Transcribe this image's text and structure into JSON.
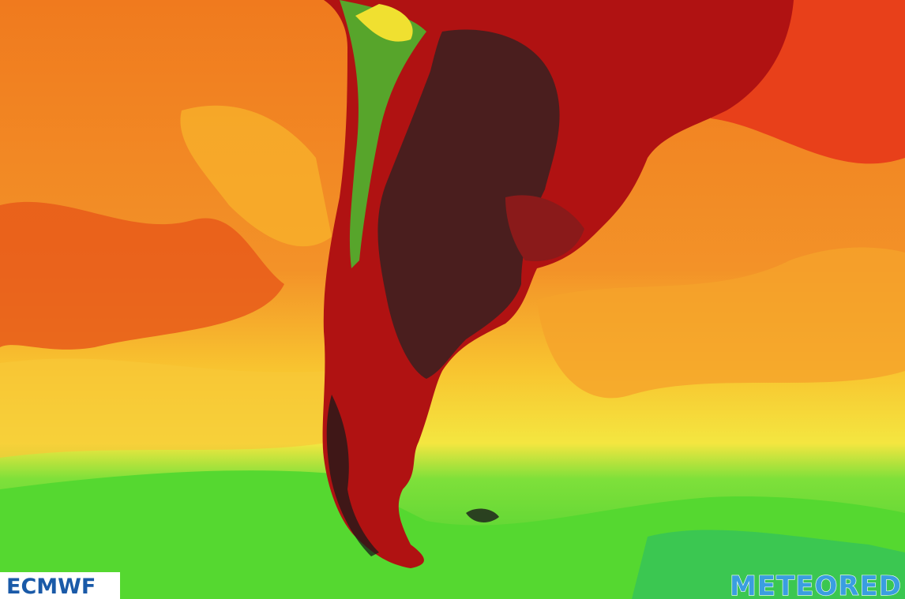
{
  "logos": {
    "left": "ECMWF",
    "right": "METEORED"
  }
}
